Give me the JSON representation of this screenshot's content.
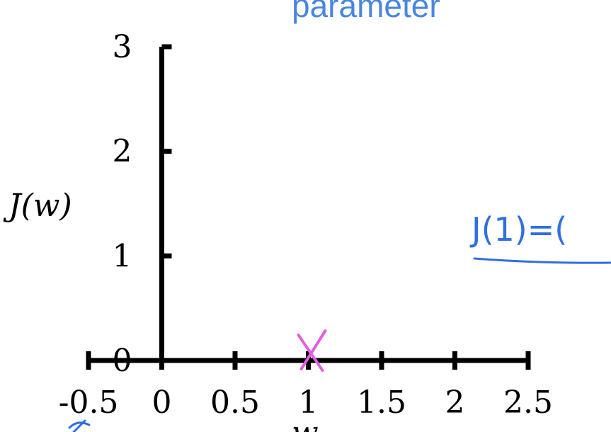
{
  "header": {
    "title_fragment": "parameter"
  },
  "annotation": {
    "text": "J(1)=("
  },
  "colors": {
    "axis": "#000000",
    "marker": "#e060e0",
    "annotation": "#2f6fe0",
    "title": "#4a86e0"
  },
  "chart_data": {
    "type": "scatter",
    "ylabel": "J(w)",
    "xlabel": "w",
    "xlim": [
      -0.5,
      2.5
    ],
    "ylim": [
      0,
      3
    ],
    "x_ticks": [
      -0.5,
      0,
      0.5,
      1,
      1.5,
      2,
      2.5
    ],
    "x_tick_labels": [
      "-0.5",
      "0",
      "0.5",
      "1",
      "1.5",
      "2",
      "2.5"
    ],
    "y_ticks": [
      0,
      1,
      2,
      3
    ],
    "y_tick_labels": [
      "0",
      "1",
      "2",
      "3"
    ],
    "grid": false,
    "points": [
      {
        "x": 1,
        "y": 0,
        "marker": "x"
      }
    ]
  }
}
